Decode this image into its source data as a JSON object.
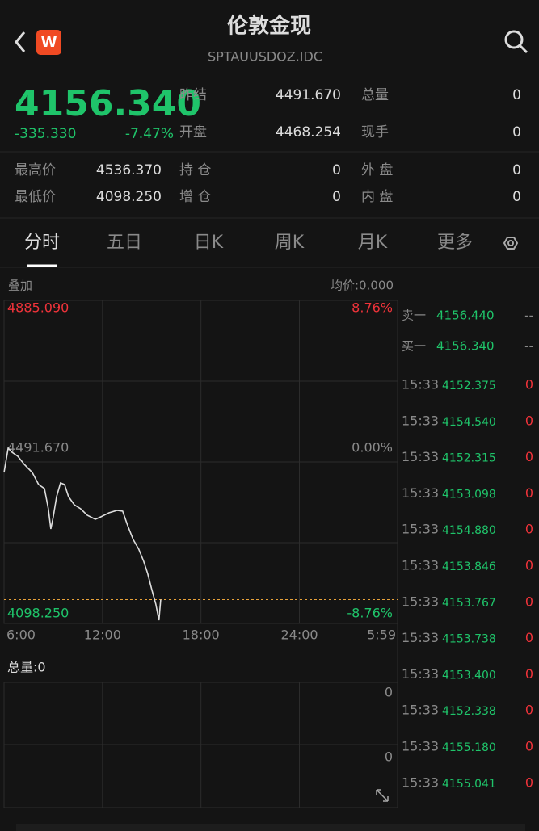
{
  "header": {
    "title": "伦敦金现",
    "code": "SPTAUUSDOZ.IDC"
  },
  "quote": {
    "price": "4156.340",
    "change": "-335.330",
    "change_pct": "-7.47%",
    "stats": [
      {
        "label": "昨结",
        "value": "4491.670"
      },
      {
        "label": "开盘",
        "value": "4468.254"
      },
      {
        "label": "总量",
        "value": "0"
      },
      {
        "label": "现手",
        "value": "0"
      },
      {
        "label": "最高价",
        "value": "4536.370"
      },
      {
        "label": "最低价",
        "value": "4098.250"
      },
      {
        "label": "持 仓",
        "value": "0"
      },
      {
        "label": "增 仓",
        "value": "0"
      },
      {
        "label": "外 盘",
        "value": "0"
      },
      {
        "label": "内 盘",
        "value": "0"
      }
    ]
  },
  "tabs": [
    "分时",
    "五日",
    "日K",
    "周K",
    "月K",
    "更多"
  ],
  "chart_data": {
    "type": "line",
    "overlay_label": "叠加",
    "avg_label": "均价:0.000",
    "color": "#dddddd",
    "x": [
      6.0,
      6.25,
      6.49,
      6.84,
      7.23,
      7.72,
      8.11,
      8.46,
      8.7,
      8.85,
      9.0,
      9.2,
      9.44,
      9.69,
      9.93,
      10.28,
      10.67,
      11.07,
      11.56,
      11.9,
      12.39,
      12.89,
      13.23,
      13.52,
      13.87,
      14.21,
      14.51,
      14.75,
      15.0,
      15.25,
      15.44,
      15.55
    ],
    "values": [
      4466.1,
      4525.1,
      4515.3,
      4505.4,
      4485.8,
      4466.1,
      4436.6,
      4426.8,
      4377.6,
      4328.4,
      4357.9,
      4407.1,
      4440.5,
      4436.6,
      4407.1,
      4387.4,
      4377.6,
      4361.9,
      4352.0,
      4357.9,
      4367.8,
      4373.7,
      4371.7,
      4338.2,
      4302.8,
      4279.2,
      4249.7,
      4220.2,
      4180.9,
      4145.5,
      4106.1,
      4156.34
    ],
    "xlim": [
      6,
      29.983
    ],
    "xticks": [
      {
        "value": 6,
        "label": "6:00"
      },
      {
        "value": 12,
        "label": "12:00"
      },
      {
        "value": 18,
        "label": "18:00"
      },
      {
        "value": 24,
        "label": "24:00"
      },
      {
        "value": 29.983,
        "label": "5:59"
      }
    ],
    "ylim": [
      4098.25,
      4885.09
    ],
    "yticks": [
      {
        "value": 4885.09,
        "label": "4885.090"
      },
      {
        "value": 4491.67,
        "label": "4491.670"
      },
      {
        "value": 4098.25,
        "label": "4098.250"
      }
    ],
    "y2lim": [
      -8.76,
      8.76
    ],
    "y2ticks": [
      {
        "value": 8.76,
        "label": "8.76%"
      },
      {
        "value": 0,
        "label": "0.00%"
      },
      {
        "value": -8.76,
        "label": "-8.76%"
      }
    ],
    "reference_line": 4156.34,
    "volume_title": "总量:0",
    "volume_labels": [
      "0",
      "0"
    ]
  },
  "order_book": [
    {
      "label": "卖一",
      "price": "4156.440",
      "volume": "--"
    },
    {
      "label": "买一",
      "price": "4156.340",
      "volume": "--"
    }
  ],
  "trades": [
    {
      "time": "15:33",
      "price": "4152.375",
      "volume": "0"
    },
    {
      "time": "15:33",
      "price": "4154.540",
      "volume": "0"
    },
    {
      "time": "15:33",
      "price": "4152.315",
      "volume": "0"
    },
    {
      "time": "15:33",
      "price": "4153.098",
      "volume": "0"
    },
    {
      "time": "15:33",
      "price": "4154.880",
      "volume": "0"
    },
    {
      "time": "15:33",
      "price": "4153.846",
      "volume": "0"
    },
    {
      "time": "15:33",
      "price": "4153.767",
      "volume": "0"
    },
    {
      "time": "15:33",
      "price": "4153.738",
      "volume": "0"
    },
    {
      "time": "15:33",
      "price": "4153.400",
      "volume": "0"
    },
    {
      "time": "15:33",
      "price": "4152.338",
      "volume": "0"
    },
    {
      "time": "15:33",
      "price": "4155.180",
      "volume": "0"
    },
    {
      "time": "15:33",
      "price": "4155.041",
      "volume": "0"
    }
  ]
}
